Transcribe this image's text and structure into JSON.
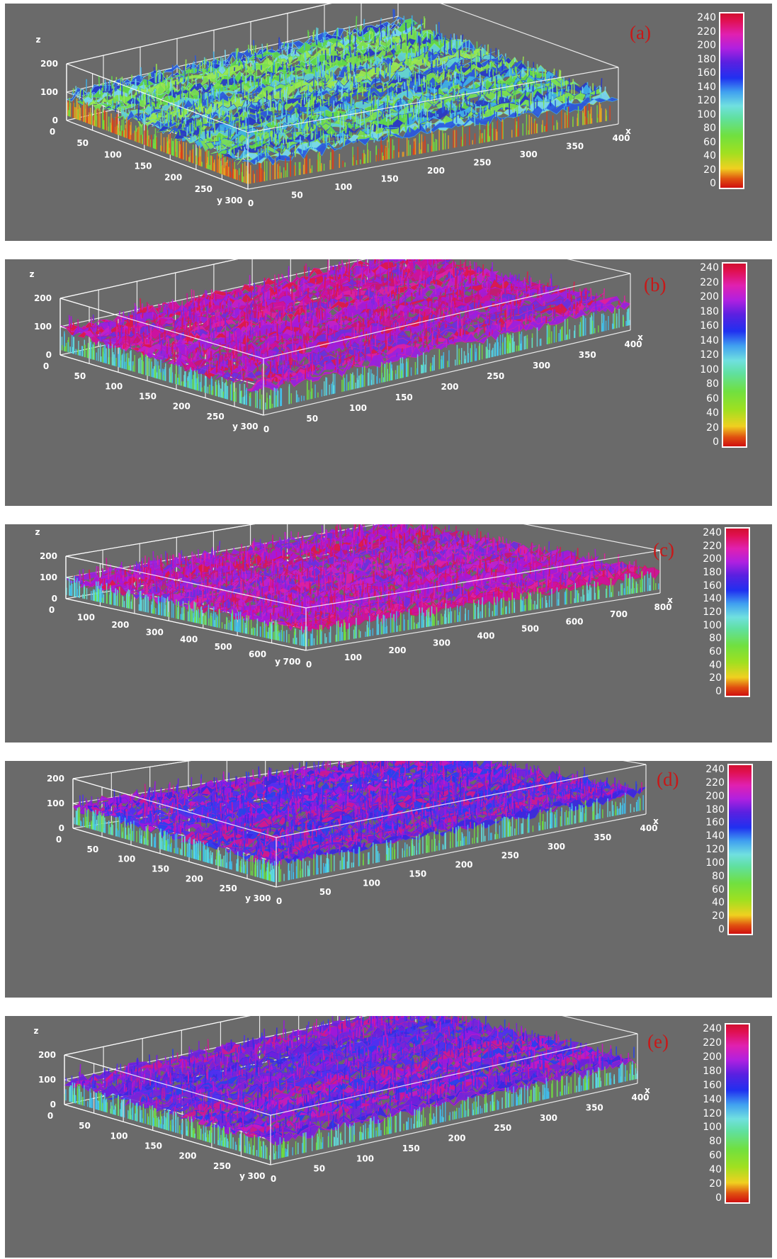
{
  "colors": {
    "background": "#6a6a6a",
    "wireframe": "#ffffff",
    "panel_label": "#c81818",
    "colormap_stops": [
      "#d01010",
      "#f0d020",
      "#70e040",
      "#70e0e0",
      "#2030f0",
      "#b020e0",
      "#e01050",
      "#d01030"
    ]
  },
  "colorbar_ticks": [
    "240",
    "220",
    "200",
    "180",
    "160",
    "140",
    "120",
    "100",
    "80",
    "60",
    "40",
    "20",
    "0"
  ],
  "panels": [
    {
      "label": "(a)",
      "dominant_surface": "green-blue",
      "z_label": "z",
      "x_label": "x",
      "y_label": "y",
      "z_ticks": [
        "200",
        "100",
        "0"
      ],
      "x_ticks": [
        "0",
        "50",
        "100",
        "150",
        "200",
        "250",
        "300",
        "350",
        "400"
      ],
      "y_ticks": [
        "0",
        "50",
        "100",
        "150",
        "200",
        "250",
        "300"
      ]
    },
    {
      "label": "(b)",
      "dominant_surface": "magenta-red",
      "z_label": "z",
      "x_label": "x",
      "y_label": "y",
      "z_ticks": [
        "200",
        "100",
        "0"
      ],
      "x_ticks": [
        "0",
        "50",
        "100",
        "150",
        "200",
        "250",
        "300",
        "350",
        "400"
      ],
      "y_ticks": [
        "0",
        "50",
        "100",
        "150",
        "200",
        "250",
        "300"
      ]
    },
    {
      "label": "(c)",
      "dominant_surface": "magenta-red",
      "z_label": "z",
      "x_label": "x",
      "y_label": "y",
      "z_ticks": [
        "200",
        "100",
        "0"
      ],
      "x_ticks": [
        "0",
        "100",
        "200",
        "300",
        "400",
        "500",
        "600",
        "700",
        "800"
      ],
      "y_ticks": [
        "0",
        "100",
        "200",
        "300",
        "400",
        "500",
        "600",
        "700"
      ]
    },
    {
      "label": "(d)",
      "dominant_surface": "blue-magenta",
      "z_label": "z",
      "x_label": "x",
      "y_label": "y",
      "z_ticks": [
        "200",
        "100",
        "0"
      ],
      "x_ticks": [
        "0",
        "50",
        "100",
        "150",
        "200",
        "250",
        "300",
        "350",
        "400"
      ],
      "y_ticks": [
        "0",
        "50",
        "100",
        "150",
        "200",
        "250",
        "300"
      ]
    },
    {
      "label": "(e)",
      "dominant_surface": "blue-magenta",
      "z_label": "z",
      "x_label": "x",
      "y_label": "y",
      "z_ticks": [
        "200",
        "100",
        "0"
      ],
      "x_ticks": [
        "0",
        "50",
        "100",
        "150",
        "200",
        "250",
        "300",
        "350",
        "400"
      ],
      "y_ticks": [
        "0",
        "50",
        "100",
        "150",
        "200",
        "250",
        "300"
      ]
    }
  ]
}
